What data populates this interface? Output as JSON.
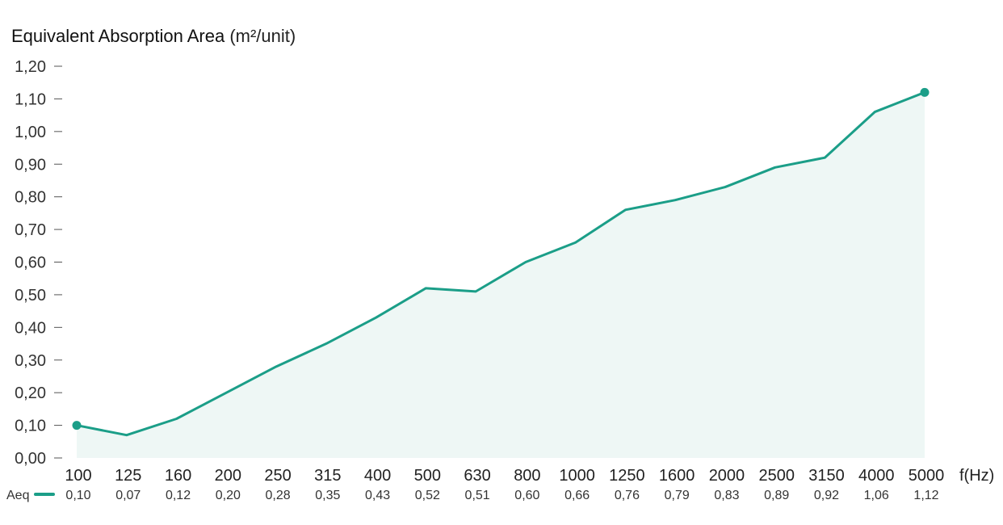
{
  "chart_data": {
    "type": "area",
    "title": "Equivalent Absorption Area",
    "title_unit": "(m²/unit)",
    "xlabel": "f(Hz)",
    "series_label": "Aeq",
    "categories": [
      "100",
      "125",
      "160",
      "200",
      "250",
      "315",
      "400",
      "500",
      "630",
      "800",
      "1000",
      "1250",
      "1600",
      "2000",
      "2500",
      "3150",
      "4000",
      "5000"
    ],
    "series": [
      {
        "name": "Aeq",
        "values": [
          0.1,
          0.07,
          0.12,
          0.2,
          0.28,
          0.35,
          0.43,
          0.52,
          0.51,
          0.6,
          0.66,
          0.76,
          0.79,
          0.83,
          0.89,
          0.92,
          1.06,
          1.12
        ]
      }
    ],
    "value_labels": [
      "0,10",
      "0,07",
      "0,12",
      "0,20",
      "0,28",
      "0,35",
      "0,43",
      "0,52",
      "0,51",
      "0,60",
      "0,66",
      "0,76",
      "0,79",
      "0,83",
      "0,89",
      "0,92",
      "1,06",
      "1,12"
    ],
    "yticks": [
      "0,00",
      "0,10",
      "0,20",
      "0,30",
      "0,40",
      "0,50",
      "0,60",
      "0,70",
      "0,80",
      "0,90",
      "1,00",
      "1,10",
      "1,20"
    ],
    "ylim": [
      0,
      1.2
    ],
    "grid": false,
    "colors": {
      "line": "#1b9e88",
      "fill": "#eef7f5"
    }
  }
}
